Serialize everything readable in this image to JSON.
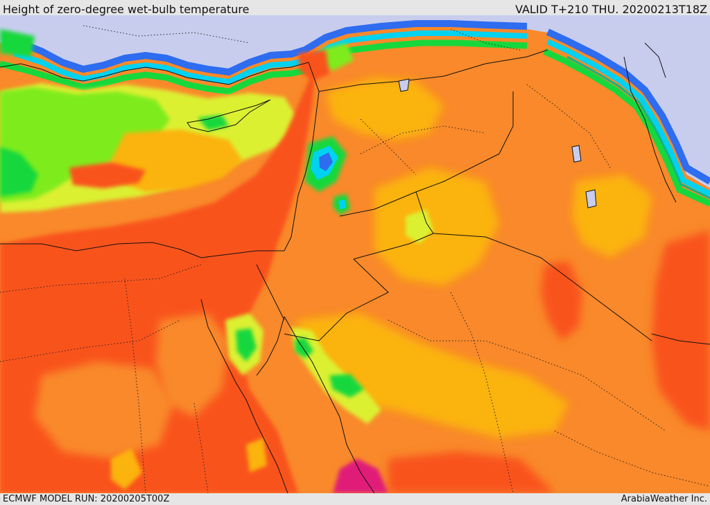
{
  "header": {
    "title": "Height of zero-degree wet-bulb temperature",
    "valid_label": "VALID T+210 THU. 20200213T18Z"
  },
  "footer": {
    "model_run": "ECMWF MODEL RUN: 20200205T00Z",
    "credit": "ArabiaWeather Inc."
  },
  "palette": {
    "lavender": "#c8cdee",
    "blue": "#2e6cf0",
    "cyan": "#00d2f0",
    "teal": "#11b486",
    "green": "#16d83c",
    "lime": "#7eec1c",
    "yellow": "#dcf032",
    "gold": "#fbb30a",
    "orange": "#f9892a",
    "redorange": "#f9521a",
    "magenta": "#e01a78"
  }
}
